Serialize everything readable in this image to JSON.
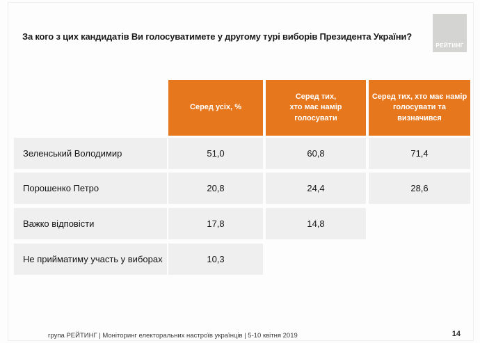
{
  "slide": {
    "title": "За кого з цих кандидатів Ви голосуватимете у другому турі виборів Президента України?"
  },
  "logo": {
    "text": "РЕЙТИНГ"
  },
  "table": {
    "column_headers": [
      "Серед усіх, %",
      "Серед тих,\nхто має намір\nголосувати",
      "Серед тих, хто має намір\nголосувати та\nвизначився"
    ],
    "rows": [
      {
        "label": "Зеленський Володимир",
        "values": [
          "51,0",
          "60,8",
          "71,4"
        ]
      },
      {
        "label": "Порошенко Петро",
        "values": [
          "20,8",
          "24,4",
          "28,6"
        ]
      },
      {
        "label": "Важко відповісти",
        "values": [
          "17,8",
          "14,8",
          null
        ]
      },
      {
        "label": "Не прийматиму участь у виборах",
        "values": [
          "10,3",
          null,
          null
        ]
      }
    ]
  },
  "footer": {
    "left": "група РЕЙТИНГ | Моніторинг електоральних настроїв українців | 5-10 квітня 2019",
    "page": "14"
  },
  "colors": {
    "accent_orange": "#E7771C",
    "cell_gray": "#EFEFEF",
    "logo_gray": "#D4D4D2"
  },
  "chart_data": {
    "type": "table",
    "title": "За кого з цих кандидатів Ви голосуватимете у другому турі виборів Президента України?",
    "columns": [
      "Серед усіх, %",
      "Серед тих, хто має намір голосувати",
      "Серед тих, хто має намір голосувати та визначився"
    ],
    "categories": [
      "Зеленський Володимир",
      "Порошенко Петро",
      "Важко відповісти",
      "Не прийматиму участь у виборах"
    ],
    "series": [
      {
        "name": "Серед усіх, %",
        "values": [
          51.0,
          20.8,
          17.8,
          10.3
        ]
      },
      {
        "name": "Серед тих, хто має намір голосувати",
        "values": [
          60.8,
          24.4,
          14.8,
          null
        ]
      },
      {
        "name": "Серед тих, хто має намір голосувати та визначився",
        "values": [
          71.4,
          28.6,
          null,
          null
        ]
      }
    ]
  }
}
